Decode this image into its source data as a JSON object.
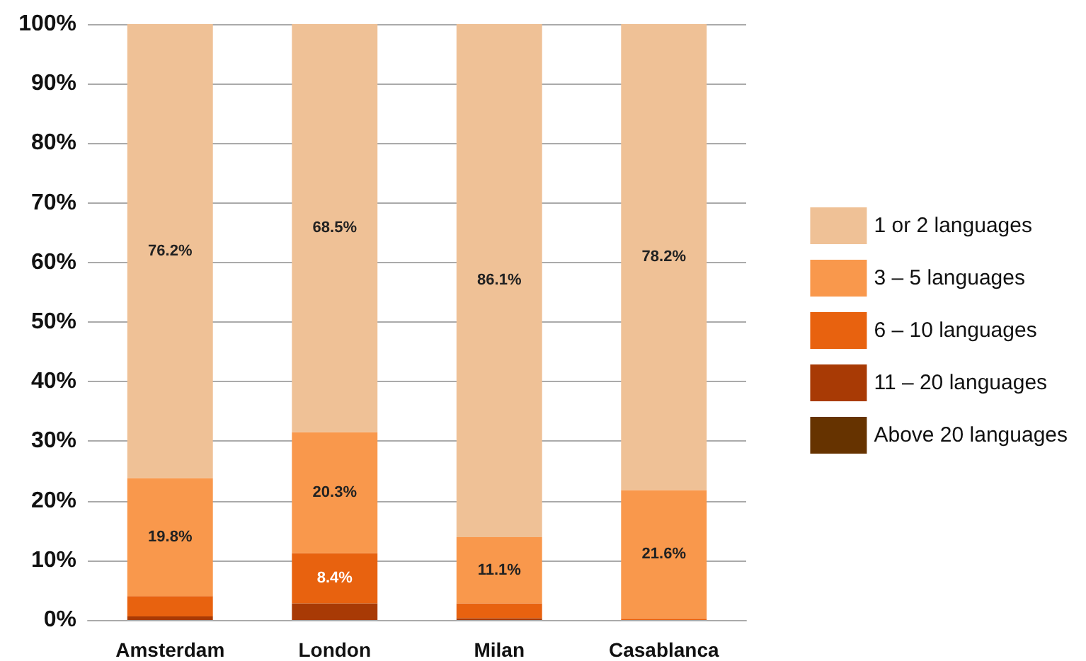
{
  "chart_data": {
    "type": "bar",
    "stacked": true,
    "categories": [
      "Amsterdam",
      "London",
      "Milan",
      "Casablanca"
    ],
    "series": [
      {
        "name": "Above 20 languages",
        "color": "#663300",
        "values": [
          0,
          0,
          0,
          0
        ]
      },
      {
        "name": "11 – 20 languages",
        "color": "#a83a05",
        "values": [
          0.6,
          2.8,
          0.3,
          0
        ]
      },
      {
        "name": "6 – 10 languages",
        "color": "#e8620f",
        "values": [
          3.4,
          8.4,
          2.5,
          0.2
        ],
        "value_labels": [
          null,
          "8.4%",
          null,
          null
        ]
      },
      {
        "name": "3 – 5 languages",
        "color": "#f9984c",
        "values": [
          19.8,
          20.3,
          11.1,
          21.6
        ],
        "value_labels": [
          "19.8%",
          "20.3%",
          "11.1%",
          "21.6%"
        ]
      },
      {
        "name": "1 or 2 languages",
        "color": "#efc196",
        "values": [
          76.2,
          68.5,
          86.1,
          78.2
        ],
        "value_labels": [
          "76.2%",
          "68.5%",
          "86.1%",
          "78.2%"
        ]
      }
    ],
    "ylim": [
      0,
      100
    ],
    "yticks": [
      {
        "value": 0,
        "label": "0%"
      },
      {
        "value": 10,
        "label": "10%"
      },
      {
        "value": 20,
        "label": "20%"
      },
      {
        "value": 30,
        "label": "30%"
      },
      {
        "value": 40,
        "label": "40%"
      },
      {
        "value": 50,
        "label": "50%"
      },
      {
        "value": 60,
        "label": "60%"
      },
      {
        "value": 70,
        "label": "70%"
      },
      {
        "value": 80,
        "label": "80%"
      },
      {
        "value": 90,
        "label": "90%"
      },
      {
        "value": 100,
        "label": "100%"
      }
    ],
    "grid": "y",
    "legend": "right"
  }
}
